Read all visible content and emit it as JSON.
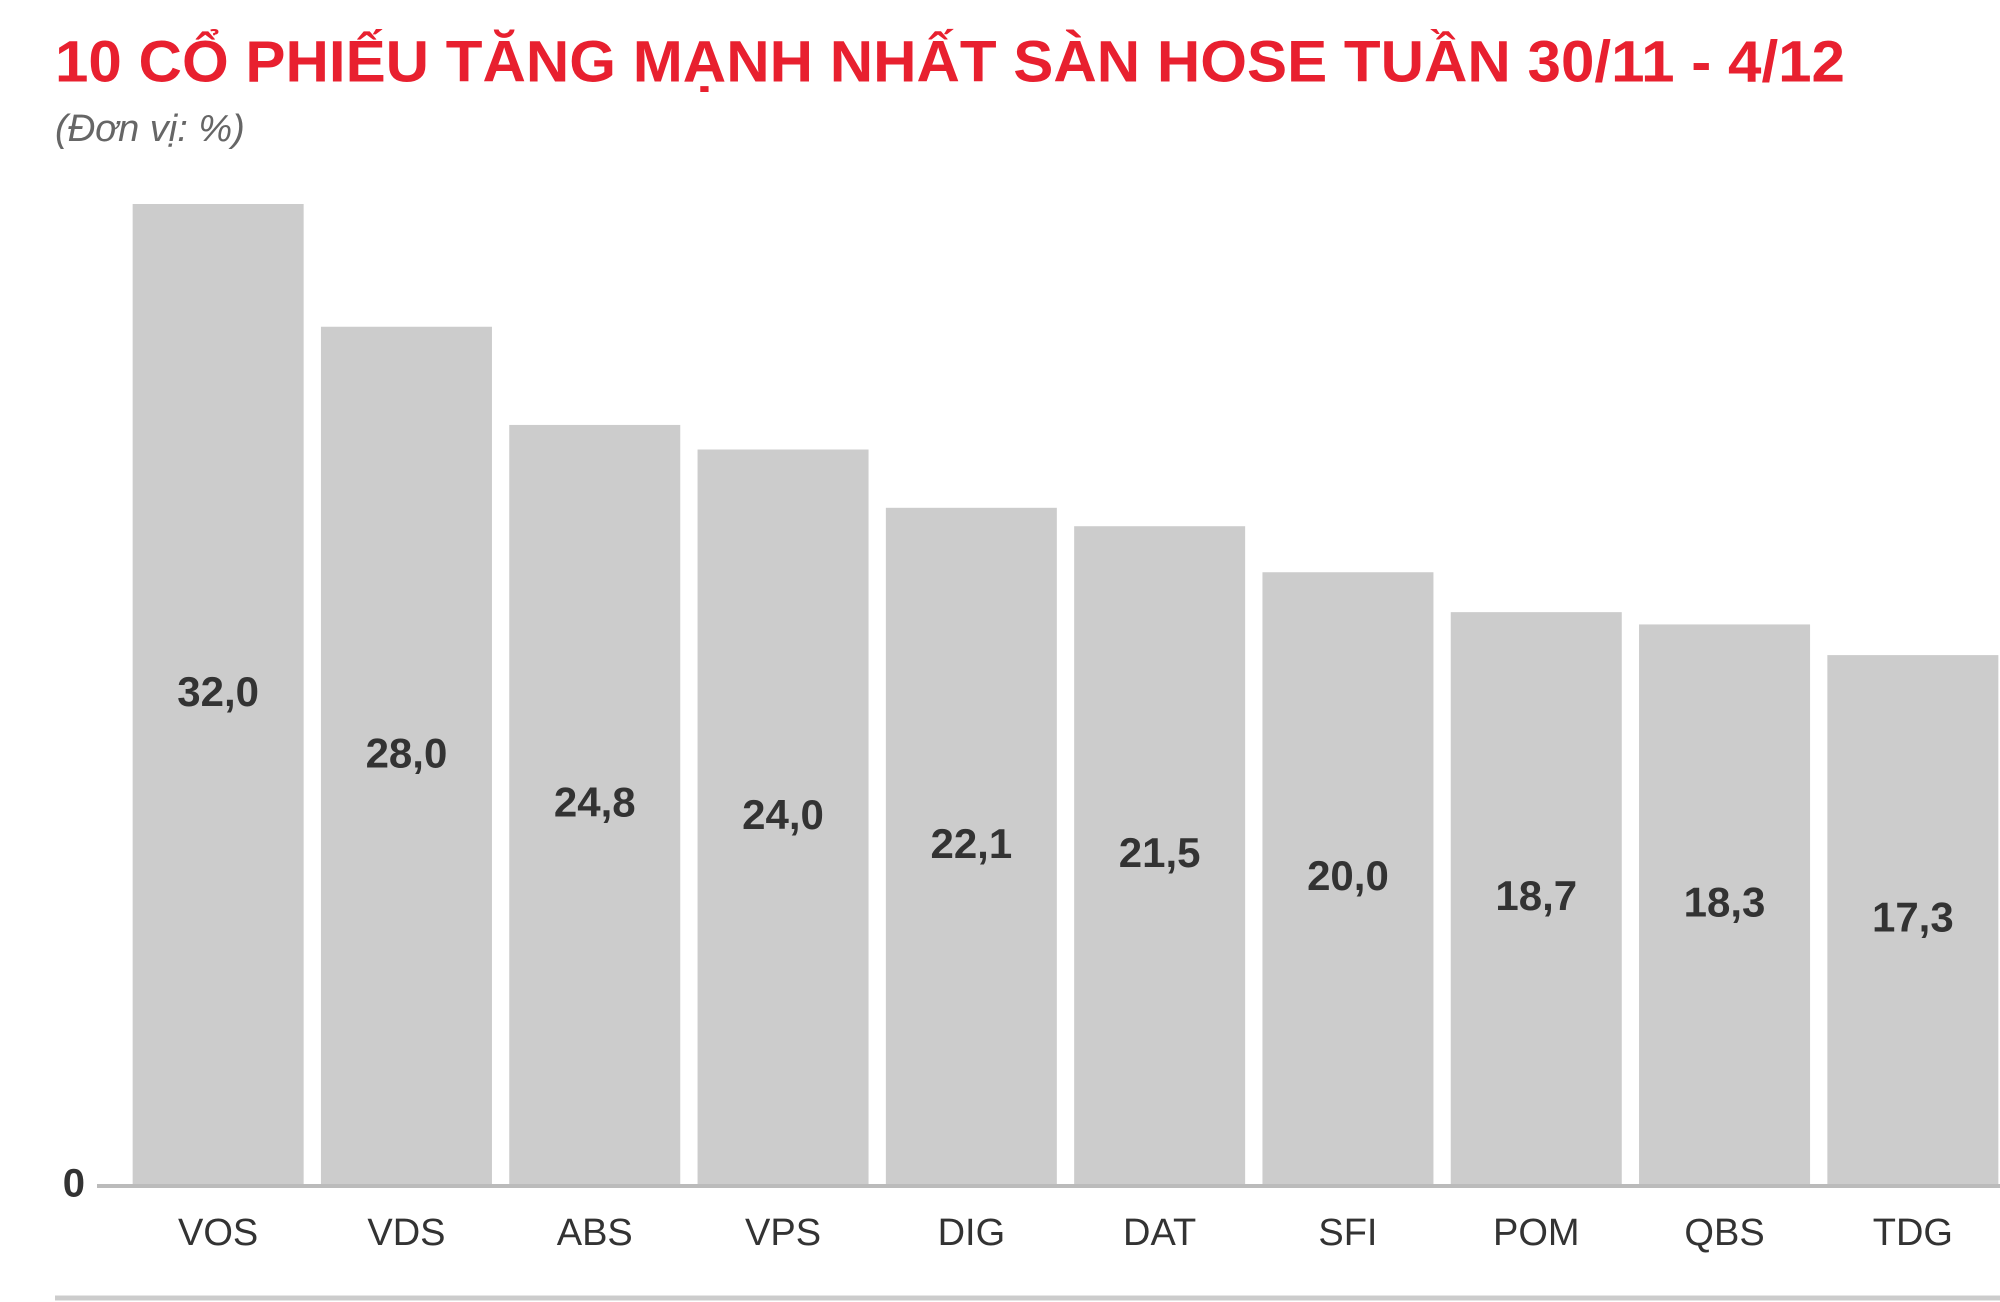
{
  "chart_data": {
    "type": "bar",
    "title": "10 CỔ PHIẾU TĂNG MẠNH NHẤT SÀN HOSE TUẦN 30/11 - 4/12",
    "subtitle": "(Đơn vị: %)",
    "categories": [
      "VOS",
      "VDS",
      "ABS",
      "VPS",
      "DIG",
      "DAT",
      "SFI",
      "POM",
      "QBS",
      "TDG"
    ],
    "values": [
      32.0,
      28.0,
      24.8,
      24.0,
      22.1,
      21.5,
      20.0,
      18.7,
      18.3,
      17.3
    ],
    "value_labels": [
      "32,0",
      "28,0",
      "24,8",
      "24,0",
      "22,1",
      "21,5",
      "20,0",
      "18,7",
      "18,3",
      "17,3"
    ],
    "color": "#cccccc",
    "ylim": [
      0,
      32
    ],
    "yticks": [
      0
    ],
    "grid": false
  }
}
